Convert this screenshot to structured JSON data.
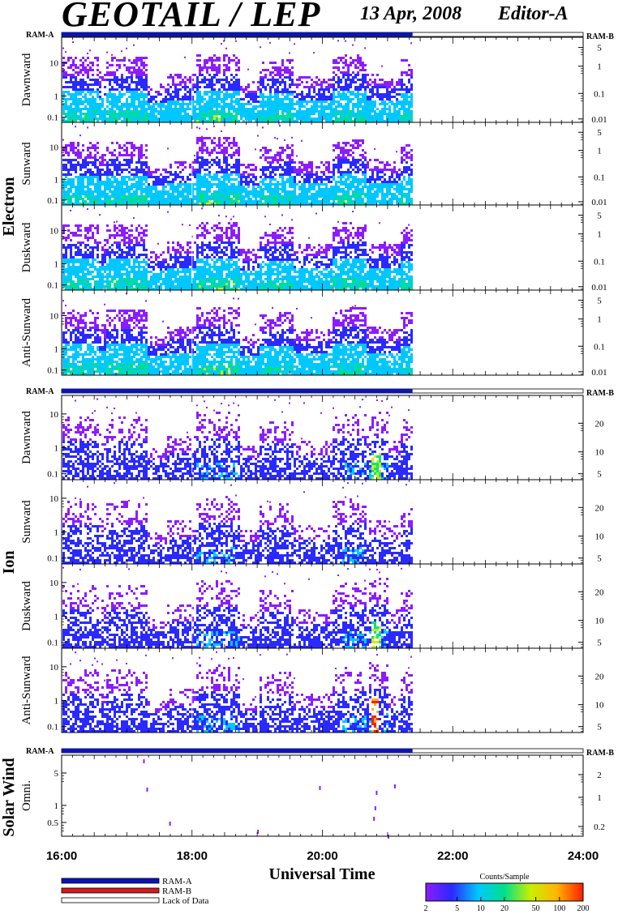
{
  "header": {
    "title": "GEOTAIL / LEP",
    "date": "13 Apr, 2008",
    "editor": "Editor-A"
  },
  "colors": {
    "ram_a": "#0a14b4",
    "ram_b": "#d11a1a",
    "background": "#ffffff",
    "colorbar": [
      "#8c1cff",
      "#2a2aff",
      "#00c8ff",
      "#00e08a",
      "#c8f000",
      "#ffb400",
      "#ff1e00"
    ]
  },
  "chart_data": {
    "type": "heatmap",
    "x_axis": {
      "label": "Universal Time",
      "range": [
        "16:00",
        "24:00"
      ],
      "ticks": [
        "16:00",
        "18:00",
        "20:00",
        "22:00",
        "24:00"
      ]
    },
    "data_coverage": {
      "start": "16:00",
      "end": "21:23",
      "mode": "RAM-A"
    },
    "groups": [
      {
        "name": "Electron",
        "mode_left": "RAM-A",
        "mode_right": "RAM-B",
        "panels": [
          {
            "name": "Dawnward",
            "left_ticks": [
              "10",
              "1",
              "0.1"
            ],
            "right_ticks": [
              "5",
              "1",
              "0.1",
              "0.01"
            ]
          },
          {
            "name": "Sunward",
            "left_ticks": [
              "10",
              "1",
              "0.1"
            ],
            "right_ticks": [
              "5",
              "1",
              "0.1",
              "0.01"
            ]
          },
          {
            "name": "Duskward",
            "left_ticks": [
              "10",
              "1",
              "0.1"
            ],
            "right_ticks": [
              "5",
              "1",
              "0.1",
              "0.01"
            ]
          },
          {
            "name": "Anti-Sunward",
            "left_ticks": [
              "10",
              "1",
              "0.1"
            ],
            "right_ticks": [
              "5",
              "1",
              "0.1",
              "0.01"
            ]
          }
        ]
      },
      {
        "name": "Ion",
        "mode_left": "RAM-A",
        "mode_right": "RAM-B",
        "panels": [
          {
            "name": "Dawnward",
            "left_ticks": [
              "10",
              "1",
              "0.1"
            ],
            "right_ticks": [
              "20",
              "10",
              "5"
            ]
          },
          {
            "name": "Sunward",
            "left_ticks": [
              "10",
              "1",
              "0.1"
            ],
            "right_ticks": [
              "20",
              "10",
              "5"
            ]
          },
          {
            "name": "Duskward",
            "left_ticks": [
              "10",
              "1",
              "0.1"
            ],
            "right_ticks": [
              "20",
              "10",
              "5"
            ]
          },
          {
            "name": "Anti-Sunward",
            "left_ticks": [
              "10",
              "1",
              "0.1"
            ],
            "right_ticks": [
              "20",
              "10",
              "5"
            ]
          }
        ]
      },
      {
        "name": "Solar Wind",
        "mode_left": "RAM-A",
        "mode_right": "RAM-B",
        "panels": [
          {
            "name": "Omni.",
            "left_ticks": [
              "5",
              "1",
              "0.5"
            ],
            "right_ticks": [
              "2",
              "1",
              "0.2"
            ]
          }
        ]
      }
    ],
    "legend": {
      "entries": [
        "RAM-A",
        "RAM-B",
        "Lack of Data"
      ],
      "colorbar_label": "Counts/Sample",
      "colorbar_ticks": [
        "2",
        "5",
        "10",
        "20",
        "50",
        "100",
        "200"
      ],
      "colorbar_range": [
        2,
        200
      ],
      "colorbar_scale": "log"
    }
  }
}
